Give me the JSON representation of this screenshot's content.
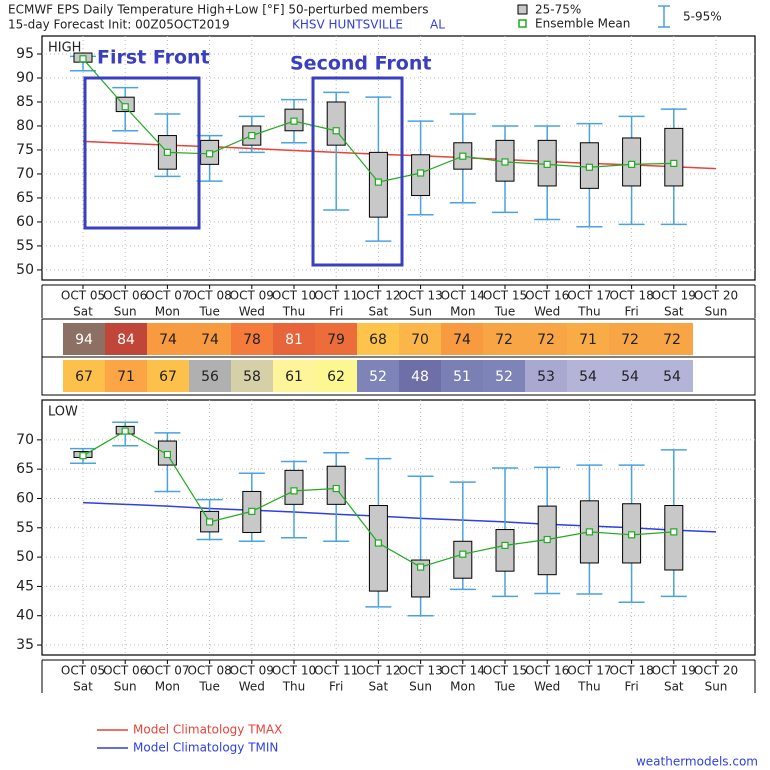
{
  "header": {
    "title": "ECMWF EPS Daily Temperature High+Low [°F]  50-perturbed members",
    "init": "15-day Forecast Init: 00Z05OCT2019",
    "station": "KHSV  HUNTSVILLE",
    "state": "AL"
  },
  "chart_data": [
    {
      "type": "box",
      "label": "HIGH",
      "categories": [
        "OCT 05",
        "OCT 06",
        "OCT 07",
        "OCT 08",
        "OCT 09",
        "OCT 10",
        "OCT 11",
        "OCT 12",
        "OCT 13",
        "OCT 14",
        "OCT 15",
        "OCT 16",
        "OCT 17",
        "OCT 18",
        "OCT 19",
        "OCT 20"
      ],
      "days": [
        "Sat",
        "Sun",
        "Mon",
        "Tue",
        "Wed",
        "Thu",
        "Fri",
        "Sat",
        "Sun",
        "Mon",
        "Tue",
        "Wed",
        "Thu",
        "Fri",
        "Sat",
        "Sun"
      ],
      "ylim": [
        47.9,
        98.75
      ],
      "yticks": [
        50,
        55,
        60,
        65,
        70,
        75,
        80,
        85,
        90,
        95
      ],
      "grid": true,
      "whiskers": {
        "name": "5-95%",
        "color": "#4aa3df",
        "low": [
          91.5,
          79,
          69.5,
          68.5,
          74.5,
          76.5,
          62.5,
          56,
          61.5,
          64,
          62,
          60.5,
          59,
          59.5,
          59.5,
          null
        ],
        "high": [
          94.5,
          88,
          82.5,
          78,
          82,
          85.5,
          87,
          86,
          81,
          82.5,
          80,
          80,
          80.5,
          82,
          83.5,
          null
        ]
      },
      "boxes": {
        "name": "25-75%",
        "color": "#c8c8c8",
        "low": [
          93.3,
          83,
          71,
          72,
          76,
          79,
          76,
          61,
          65.5,
          71,
          68.5,
          67.5,
          67,
          67.5,
          67.5,
          null
        ],
        "high": [
          95.2,
          86,
          78,
          77,
          80,
          83.5,
          85,
          74.5,
          74,
          76.5,
          77,
          77,
          76.5,
          77.5,
          79.5,
          null
        ]
      },
      "mean": {
        "name": "Ensemble Mean",
        "color": "#22aa22",
        "values": [
          94,
          84,
          74.5,
          74.2,
          78,
          81,
          79,
          68.3,
          70.2,
          73.7,
          72.5,
          72,
          71.4,
          72,
          72.2,
          null
        ]
      },
      "climatology": {
        "name": "Model Climatology TMAX",
        "color": "#e8433a",
        "values": [
          76.8,
          76.4,
          76.0,
          75.7,
          75.3,
          74.9,
          74.5,
          74.1,
          73.8,
          73.4,
          73.0,
          72.6,
          72.2,
          71.9,
          71.5,
          71.1
        ]
      },
      "annotations": [
        "First Front",
        "Second Front"
      ]
    },
    {
      "type": "box",
      "label": "LOW",
      "categories": [
        "OCT 05",
        "OCT 06",
        "OCT 07",
        "OCT 08",
        "OCT 09",
        "OCT 10",
        "OCT 11",
        "OCT 12",
        "OCT 13",
        "OCT 14",
        "OCT 15",
        "OCT 16",
        "OCT 17",
        "OCT 18",
        "OCT 19",
        "OCT 20"
      ],
      "days": [
        "Sat",
        "Sun",
        "Mon",
        "Tue",
        "Wed",
        "Thu",
        "Fri",
        "Sat",
        "Sun",
        "Mon",
        "Tue",
        "Wed",
        "Thu",
        "Fri",
        "Sat",
        "Sun"
      ],
      "ylim": [
        33.3,
        76.8
      ],
      "yticks": [
        35,
        40,
        45,
        50,
        55,
        60,
        65,
        70
      ],
      "grid": true,
      "whiskers": {
        "color": "#4aa3df",
        "low": [
          66,
          69,
          61.2,
          53,
          52.7,
          53.3,
          52.7,
          41.5,
          40,
          44.5,
          43.3,
          43.8,
          43.7,
          42.3,
          43.3,
          null
        ],
        "high": [
          68.5,
          73,
          71.2,
          59.8,
          64.3,
          66.3,
          67.8,
          66.8,
          63.8,
          62.8,
          65.2,
          65.3,
          65.7,
          65.7,
          68.3,
          null
        ]
      },
      "boxes": {
        "color": "#c8c8c8",
        "low": [
          67,
          71,
          65.7,
          54.3,
          54.2,
          59,
          59,
          44.2,
          43.2,
          46.4,
          47.6,
          47,
          49,
          49,
          47.8,
          null
        ],
        "high": [
          68,
          72.3,
          69.8,
          57.8,
          61.2,
          64.8,
          65.5,
          58.8,
          49.5,
          52.7,
          54.7,
          58.7,
          59.6,
          59.1,
          58.8,
          null
        ]
      },
      "mean": {
        "color": "#22aa22",
        "values": [
          67.3,
          71.5,
          67.5,
          56,
          57.8,
          61.3,
          61.7,
          52.4,
          48.3,
          50.5,
          52,
          53,
          54.3,
          53.8,
          54.3,
          null
        ]
      },
      "climatology": {
        "name": "Model Climatology TMIN",
        "color": "#2f3fe0",
        "values": [
          59.3,
          59.0,
          58.7,
          58.3,
          58.0,
          57.7,
          57.3,
          57.0,
          56.6,
          56.3,
          56.0,
          55.6,
          55.3,
          55.0,
          54.6,
          54.3
        ]
      }
    }
  ],
  "table": {
    "rows": [
      {
        "values": [
          94,
          84,
          74,
          74,
          78,
          81,
          79,
          68,
          70,
          74,
          72,
          72,
          71,
          72,
          72
        ],
        "colors": [
          "#8c7064",
          "#c0463a",
          "#f79a40",
          "#f79a40",
          "#f57b3a",
          "#e8643a",
          "#ec6d3a",
          "#fdc34a",
          "#fbb548",
          "#f79a40",
          "#f8a545",
          "#f8a545",
          "#f9ab46",
          "#f8a545",
          "#f8a545"
        ],
        "text_colors": [
          "#fff",
          "#fff",
          "#222",
          "#222",
          "#222",
          "#fff",
          "#222",
          "#222",
          "#222",
          "#222",
          "#222",
          "#222",
          "#222",
          "#222",
          "#222"
        ]
      },
      {
        "values": [
          67,
          71,
          67,
          56,
          58,
          61,
          62,
          52,
          48,
          51,
          52,
          53,
          54,
          54,
          54
        ],
        "colors": [
          "#fdc04a",
          "#fca544",
          "#fdc04a",
          "#b0b0b0",
          "#d5d0a8",
          "#fef49a",
          "#fdf792",
          "#7f84b8",
          "#6d6fa6",
          "#7b80b4",
          "#7f84b8",
          "#a8a8d0",
          "#b4b4d8",
          "#b4b4d8",
          "#b4b4d8"
        ],
        "text_colors": [
          "#222",
          "#222",
          "#222",
          "#222",
          "#222",
          "#222",
          "#222",
          "#fff",
          "#fff",
          "#fff",
          "#fff",
          "#222",
          "#222",
          "#222",
          "#222"
        ]
      }
    ]
  },
  "footer": "weathermodels.com"
}
